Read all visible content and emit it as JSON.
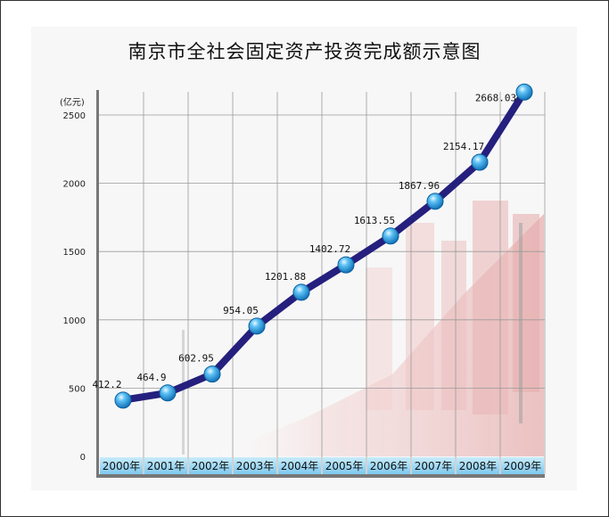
{
  "chart_data": {
    "type": "line",
    "title": "南京市全社会固定资产投资完成额示意图",
    "ylabel": "(亿元)",
    "xlabel": "",
    "categories": [
      "2000年",
      "2001年",
      "2002年",
      "2003年",
      "2004年",
      "2005年",
      "2006年",
      "2007年",
      "2008年",
      "2009年"
    ],
    "series": [
      {
        "values": [
          412.2,
          464.9,
          602.95,
          954.05,
          1201.88,
          1402.72,
          1613.55,
          1867.96,
          2154.17,
          2668.03
        ]
      }
    ],
    "data_labels": [
      "412.2",
      "464.9",
      "602.95",
      "954.05",
      "1201.88",
      "1402.72",
      "1613.55",
      "1867.96",
      "2154.17",
      "2668.03"
    ],
    "yticks": [
      0,
      500,
      1000,
      1500,
      2000,
      2500
    ],
    "ytick_labels": [
      "0",
      "500",
      "1000",
      "1500",
      "2000",
      "2500"
    ],
    "ylim": [
      0,
      2600
    ],
    "grid": true,
    "colors": {
      "line": "#251f7e",
      "marker": "#2f9fe6",
      "category_band": "#8fd0f1",
      "axis": "#777777"
    }
  }
}
